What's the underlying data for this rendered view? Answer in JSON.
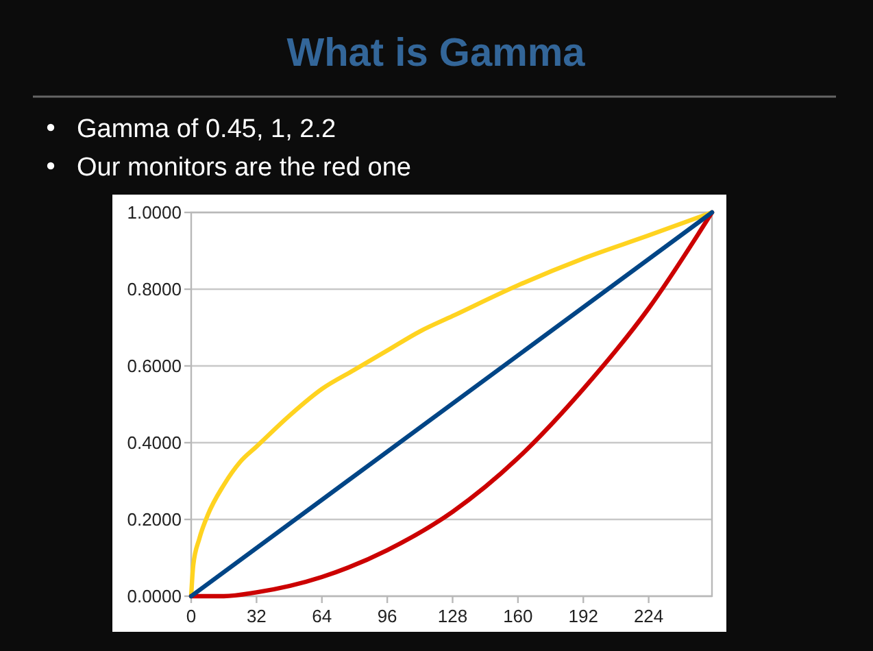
{
  "chart_data": {
    "type": "line",
    "title": "What is Gamma",
    "annotations": [
      "Gamma of 0.45, 1, 2.2",
      "Our monitors are the red one"
    ],
    "xlim": [
      0,
      255
    ],
    "xticks": [
      0,
      32,
      64,
      96,
      128,
      160,
      192,
      224
    ],
    "ylim": [
      0,
      1
    ],
    "yticks": [
      {
        "value": 0,
        "label": "0.0000"
      },
      {
        "value": 0.2,
        "label": "0.2000"
      },
      {
        "value": 0.4,
        "label": "0.4000"
      },
      {
        "value": 0.6,
        "label": "0.6000"
      },
      {
        "value": 0.8,
        "label": "0.8000"
      },
      {
        "value": 1,
        "label": "1.0000"
      }
    ],
    "grid": "y",
    "series": [
      {
        "color": "#ffd320",
        "x": [
          0,
          1,
          4,
          8,
          16,
          24,
          32,
          48,
          64,
          80,
          96,
          112,
          128,
          160,
          192,
          224,
          255
        ],
        "values": [
          0,
          0.08,
          0.15,
          0.21,
          0.29,
          0.35,
          0.39,
          0.47,
          0.54,
          0.59,
          0.64,
          0.69,
          0.73,
          0.81,
          0.88,
          0.94,
          1
        ]
      },
      {
        "color": "#cc0000",
        "x": [
          0,
          16,
          32,
          64,
          96,
          128,
          160,
          192,
          224,
          255
        ],
        "values": [
          0,
          0,
          0.01,
          0.05,
          0.12,
          0.22,
          0.36,
          0.54,
          0.75,
          1
        ]
      },
      {
        "color": "#004586",
        "x": [
          0,
          255
        ],
        "values": [
          0,
          1
        ]
      }
    ]
  }
}
